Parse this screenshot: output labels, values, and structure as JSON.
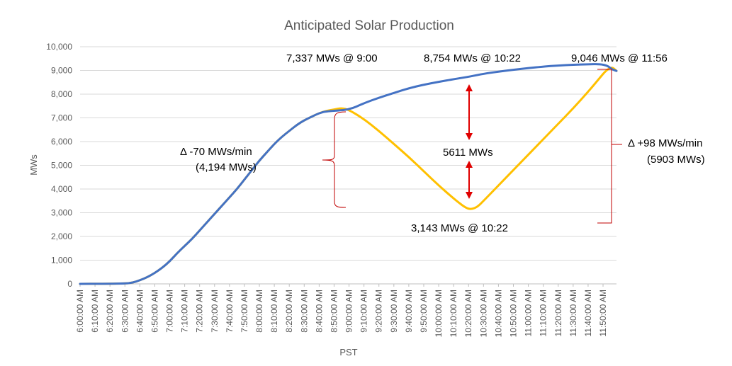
{
  "chart_data": {
    "type": "line",
    "title": "Anticipated Solar Production",
    "xlabel": "PST",
    "ylabel": "MWs",
    "ylim": [
      0,
      10000
    ],
    "y_ticks": [
      "0",
      "1,000",
      "2,000",
      "3,000",
      "4,000",
      "5,000",
      "6,000",
      "7,000",
      "8,000",
      "9,000",
      "10,000"
    ],
    "x_ticks": [
      "6:00:00 AM",
      "6:10:00 AM",
      "6:20:00 AM",
      "6:30:00 AM",
      "6:40:00 AM",
      "6:50:00 AM",
      "7:00:00 AM",
      "7:10:00 AM",
      "7:20:00 AM",
      "7:30:00 AM",
      "7:40:00 AM",
      "7:50:00 AM",
      "8:00:00 AM",
      "8:10:00 AM",
      "8:20:00 AM",
      "8:30:00 AM",
      "8:40:00 AM",
      "8:50:00 AM",
      "9:00:00 AM",
      "9:10:00 AM",
      "9:20:00 AM",
      "9:30:00 AM",
      "9:40:00 AM",
      "9:50:00 AM",
      "10:00:00 AM",
      "10:10:00 AM",
      "10:20:00 AM",
      "10:30:00 AM",
      "10:40:00 AM",
      "10:50:00 AM",
      "11:00:00 AM",
      "11:10:00 AM",
      "11:20:00 AM",
      "11:30:00 AM",
      "11:40:00 AM",
      "11:50:00 AM"
    ],
    "x_end": "11:59:00 AM",
    "grid": true,
    "series": [
      {
        "color": "#4472C4",
        "points": [
          [
            "6:00",
            0
          ],
          [
            "6:30",
            10
          ],
          [
            "6:35",
            50
          ],
          [
            "6:40",
            150
          ],
          [
            "6:45",
            280
          ],
          [
            "6:50",
            460
          ],
          [
            "6:55",
            680
          ],
          [
            "7:00",
            950
          ],
          [
            "7:05",
            1300
          ],
          [
            "7:10",
            1600
          ],
          [
            "7:15",
            1900
          ],
          [
            "7:20",
            2250
          ],
          [
            "7:25",
            2600
          ],
          [
            "7:30",
            2950
          ],
          [
            "7:35",
            3300
          ],
          [
            "7:40",
            3650
          ],
          [
            "7:45",
            4000
          ],
          [
            "7:50",
            4400
          ],
          [
            "7:55",
            4800
          ],
          [
            "8:00",
            5200
          ],
          [
            "8:05",
            5550
          ],
          [
            "8:10",
            5900
          ],
          [
            "8:15",
            6200
          ],
          [
            "8:20",
            6450
          ],
          [
            "8:25",
            6700
          ],
          [
            "8:30",
            6900
          ],
          [
            "8:35",
            7050
          ],
          [
            "8:40",
            7200
          ],
          [
            "8:45",
            7280
          ],
          [
            "9:00",
            7337
          ],
          [
            "9:10",
            7620
          ],
          [
            "9:20",
            7850
          ],
          [
            "9:30",
            8050
          ],
          [
            "9:40",
            8250
          ],
          [
            "9:50",
            8400
          ],
          [
            "10:00",
            8520
          ],
          [
            "10:10",
            8630
          ],
          [
            "10:22",
            8754
          ],
          [
            "10:30",
            8860
          ],
          [
            "10:40",
            8950
          ],
          [
            "10:50",
            9030
          ],
          [
            "11:00",
            9100
          ],
          [
            "11:10",
            9160
          ],
          [
            "11:20",
            9210
          ],
          [
            "11:30",
            9240
          ],
          [
            "11:40",
            9260
          ],
          [
            "11:48",
            9270
          ],
          [
            "11:53",
            9200
          ],
          [
            "11:56",
            9046
          ],
          [
            "11:59",
            8980
          ]
        ]
      },
      {
        "color": "#FFC000",
        "points": [
          [
            "6:00",
            0
          ],
          [
            "6:30",
            10
          ],
          [
            "6:35",
            50
          ],
          [
            "6:40",
            150
          ],
          [
            "6:45",
            280
          ],
          [
            "6:50",
            460
          ],
          [
            "6:55",
            680
          ],
          [
            "7:00",
            950
          ],
          [
            "7:05",
            1300
          ],
          [
            "7:10",
            1600
          ],
          [
            "7:15",
            1900
          ],
          [
            "7:20",
            2250
          ],
          [
            "7:25",
            2600
          ],
          [
            "7:30",
            2950
          ],
          [
            "7:35",
            3300
          ],
          [
            "7:40",
            3650
          ],
          [
            "7:45",
            4000
          ],
          [
            "7:50",
            4400
          ],
          [
            "7:55",
            4800
          ],
          [
            "8:00",
            5200
          ],
          [
            "8:05",
            5550
          ],
          [
            "8:10",
            5900
          ],
          [
            "8:15",
            6200
          ],
          [
            "8:20",
            6450
          ],
          [
            "8:25",
            6700
          ],
          [
            "8:30",
            6900
          ],
          [
            "8:35",
            7050
          ],
          [
            "8:40",
            7200
          ],
          [
            "8:45",
            7300
          ],
          [
            "8:50",
            7350
          ],
          [
            "8:55",
            7420
          ],
          [
            "9:00",
            7337
          ],
          [
            "9:10",
            6950
          ],
          [
            "9:20",
            6450
          ],
          [
            "9:30",
            5900
          ],
          [
            "9:40",
            5350
          ],
          [
            "9:50",
            4750
          ],
          [
            "10:00",
            4150
          ],
          [
            "10:10",
            3600
          ],
          [
            "10:18",
            3200
          ],
          [
            "10:22",
            3143
          ],
          [
            "10:26",
            3250
          ],
          [
            "10:30",
            3500
          ],
          [
            "10:40",
            4150
          ],
          [
            "10:50",
            4800
          ],
          [
            "11:00",
            5450
          ],
          [
            "11:10",
            6100
          ],
          [
            "11:20",
            6750
          ],
          [
            "11:30",
            7400
          ],
          [
            "11:40",
            8100
          ],
          [
            "11:48",
            8700
          ],
          [
            "11:52",
            9000
          ],
          [
            "11:56",
            9150
          ],
          [
            "11:59",
            8980
          ]
        ]
      }
    ],
    "annotations": [
      "7,337 MWs @ 9:00",
      "8,754 MWs @ 10:22",
      "9,046 MWs @ 11:56",
      "Δ -70 MWs/min",
      "(4,194 MWs)",
      "5611 MWs",
      "3,143 MWs @ 10:22",
      "Δ  +98 MWs/min",
      "(5903 MWs)"
    ]
  }
}
